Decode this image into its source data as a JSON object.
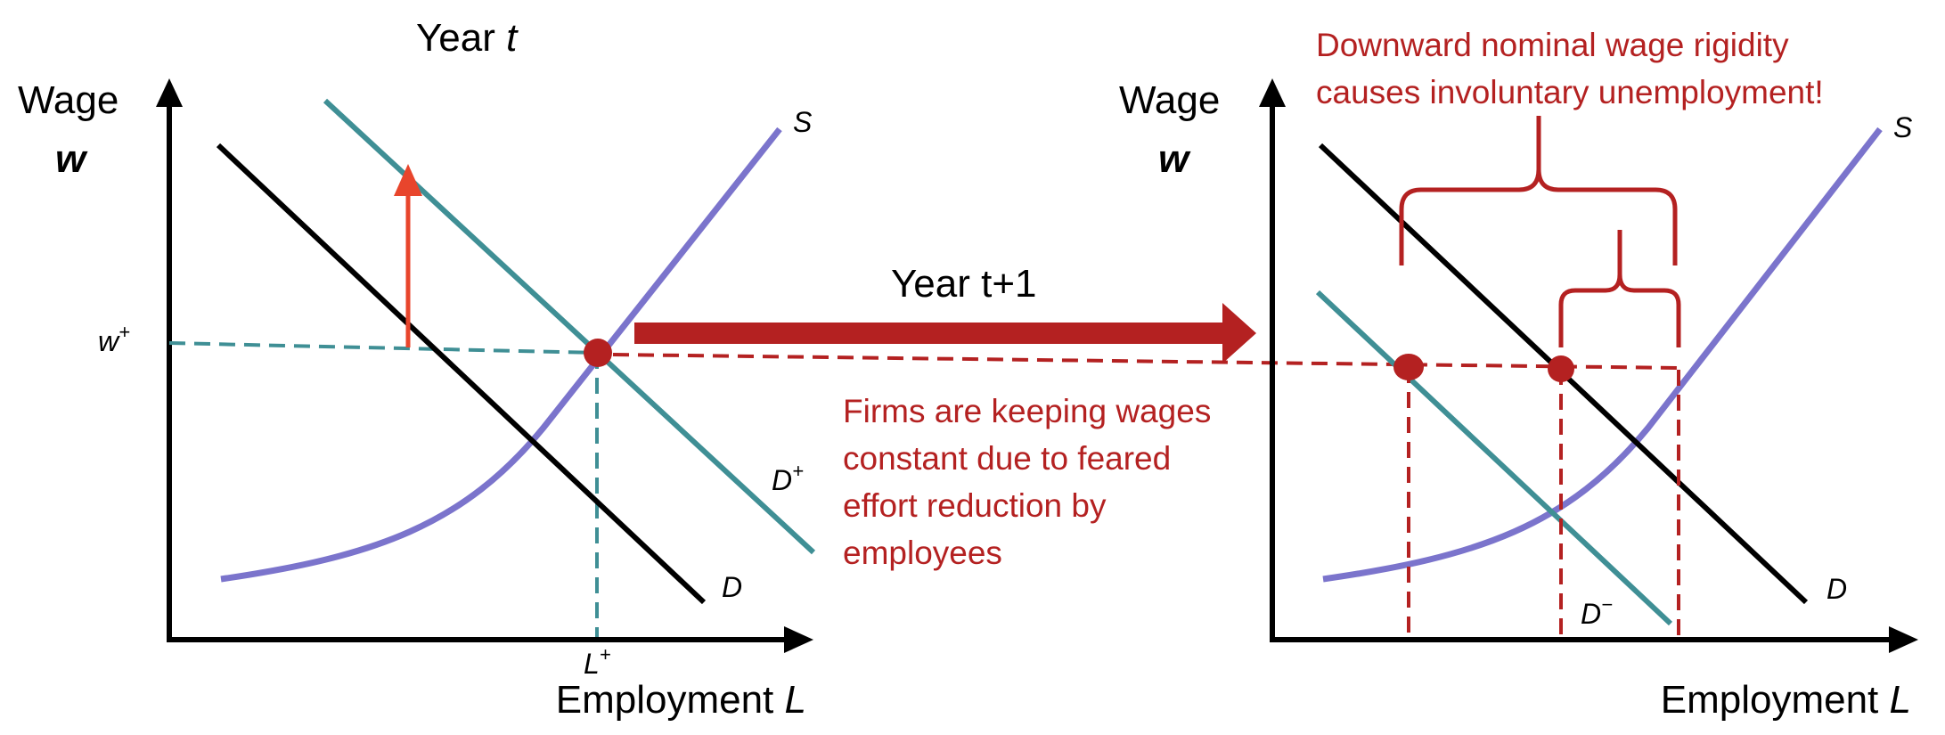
{
  "left_panel": {
    "title_prefix": "Year ",
    "title_var": "t",
    "y_axis": {
      "line1": "Wage",
      "line2": "w"
    },
    "x_axis": {
      "text": "Employment ",
      "var": "L"
    },
    "curves": {
      "supply": "S",
      "demand": "D",
      "demand_shifted": "D",
      "demand_shifted_sup": "+"
    },
    "wage_tick": {
      "base": "w",
      "sup": "+"
    },
    "employment_tick": {
      "base": "L",
      "sup": "+"
    }
  },
  "transition": {
    "label": "Year t+1"
  },
  "right_panel": {
    "y_axis": {
      "line1": "Wage",
      "line2": "w"
    },
    "x_axis": {
      "text": "Employment ",
      "var": "L"
    },
    "curves": {
      "supply": "S",
      "demand": "D",
      "demand_shifted": "D",
      "demand_shifted_sup": "−"
    }
  },
  "annotations": {
    "rigidity": [
      "Downward nominal wage rigidity",
      "causes involuntary unemployment!"
    ],
    "firms": [
      "Firms are keeping wages",
      "constant due to feared",
      "effort reduction by",
      "employees"
    ]
  },
  "colors": {
    "supply": "#7b74cc",
    "demand": "#000000",
    "shifted_demand": "#3f8f95",
    "rigidity": "#b42121",
    "shift_arrow": "#e8452c"
  }
}
